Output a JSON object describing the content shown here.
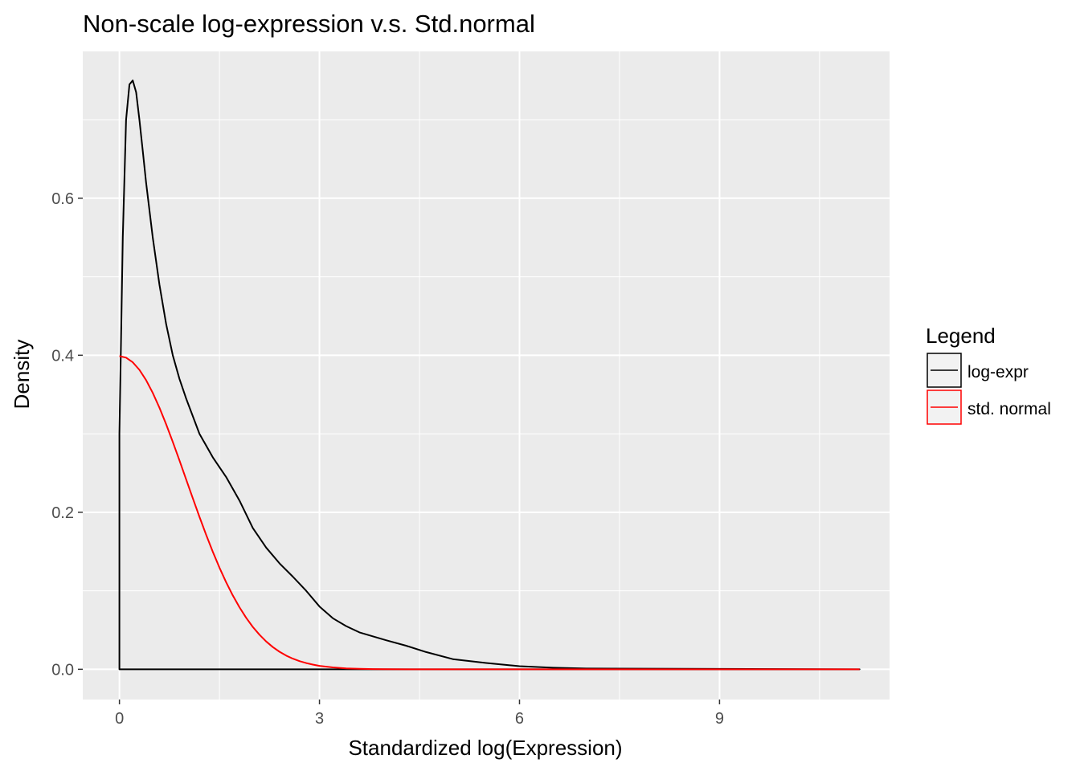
{
  "chart_data": {
    "type": "line",
    "title": "Non-scale log-expression v.s. Std.normal",
    "xlabel": "Standardized log(Expression)",
    "ylabel": "Density",
    "xlim": [
      -0.55,
      11.55
    ],
    "ylim": [
      -0.0385,
      0.787
    ],
    "x_ticks": [
      0,
      3,
      6,
      9
    ],
    "x_tick_labels": [
      "0",
      "3",
      "6",
      "9"
    ],
    "y_ticks": [
      0.0,
      0.2,
      0.4,
      0.6
    ],
    "y_tick_labels": [
      "0.0",
      "0.2",
      "0.4",
      "0.6"
    ],
    "grid": true,
    "panel_background": "#ebebeb",
    "legend": {
      "title": "Legend",
      "position": "right",
      "entries": [
        "log-expr",
        "std. normal"
      ]
    },
    "series": [
      {
        "name": "log-expr",
        "color": "#000000",
        "x": [
          0,
          0.02,
          0.05,
          0.1,
          0.15,
          0.2,
          0.25,
          0.3,
          0.35,
          0.4,
          0.5,
          0.6,
          0.7,
          0.8,
          0.9,
          1.0,
          1.2,
          1.4,
          1.6,
          1.8,
          2.0,
          2.2,
          2.4,
          2.6,
          2.8,
          3.0,
          3.2,
          3.4,
          3.6,
          3.8,
          4.0,
          4.3,
          4.6,
          5.0,
          5.5,
          6.0,
          6.5,
          7.0,
          11.1,
          0,
          0
        ],
        "y": [
          0.3,
          0.4,
          0.55,
          0.7,
          0.745,
          0.75,
          0.735,
          0.7,
          0.66,
          0.62,
          0.55,
          0.49,
          0.44,
          0.4,
          0.37,
          0.345,
          0.3,
          0.27,
          0.245,
          0.215,
          0.18,
          0.155,
          0.135,
          0.118,
          0.1,
          0.08,
          0.065,
          0.055,
          0.047,
          0.042,
          0.037,
          0.03,
          0.022,
          0.013,
          0.008,
          0.004,
          0.002,
          0.001,
          0.0,
          0.0,
          0.3
        ]
      },
      {
        "name": "std. normal",
        "color": "#ff0000",
        "x": [
          0,
          0.1,
          0.2,
          0.3,
          0.4,
          0.5,
          0.6,
          0.7,
          0.8,
          0.9,
          1.0,
          1.1,
          1.2,
          1.3,
          1.4,
          1.5,
          1.6,
          1.7,
          1.8,
          1.9,
          2.0,
          2.1,
          2.2,
          2.3,
          2.4,
          2.5,
          2.6,
          2.7,
          2.8,
          2.9,
          3.0,
          3.2,
          3.4,
          3.6,
          3.8,
          4.0,
          5.0,
          6.0,
          8.0,
          11.1
        ],
        "y": [
          0.3989,
          0.397,
          0.391,
          0.3814,
          0.3683,
          0.3521,
          0.3332,
          0.3123,
          0.2897,
          0.2661,
          0.242,
          0.2179,
          0.1942,
          0.1714,
          0.1497,
          0.1295,
          0.1109,
          0.0941,
          0.079,
          0.0656,
          0.054,
          0.044,
          0.0355,
          0.0283,
          0.0224,
          0.0175,
          0.0136,
          0.0104,
          0.0079,
          0.006,
          0.0044,
          0.0024,
          0.0012,
          0.0006,
          0.0003,
          0.0001,
          0.0,
          0.0,
          0.0,
          0.0
        ]
      }
    ]
  }
}
